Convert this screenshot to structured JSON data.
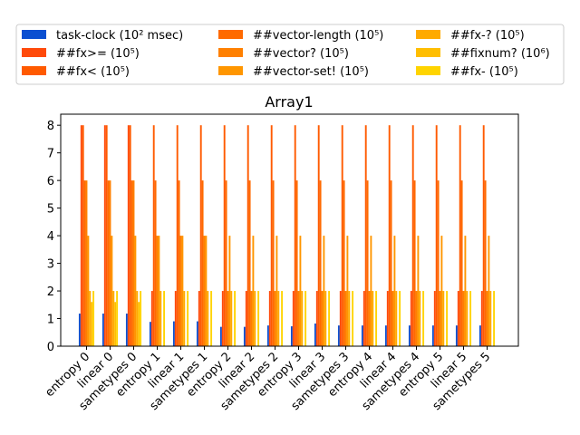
{
  "chart_data": {
    "type": "bar",
    "title": "Array1",
    "xlabel": "",
    "ylabel": "",
    "ylim": [
      0,
      8.4
    ],
    "yticks": [
      0,
      1,
      2,
      3,
      4,
      5,
      6,
      7,
      8
    ],
    "grid": false,
    "legend_position": "top (above plot, 3 columns)",
    "categories": [
      "entropy 0",
      "linear 0",
      "sametypes 0",
      "entropy 1",
      "linear 1",
      "sametypes 1",
      "entropy 2",
      "linear 2",
      "sametypes 2",
      "entropy 3",
      "linear 3",
      "sametypes 3",
      "entropy 4",
      "linear 4",
      "sametypes 4",
      "entropy 5",
      "linear 5",
      "sametypes 5"
    ],
    "series": [
      {
        "name": "task-clock (10² msec)",
        "color": "#0a4fd1",
        "values": [
          1.18,
          1.18,
          1.18,
          0.88,
          0.9,
          0.9,
          0.7,
          0.7,
          0.75,
          0.72,
          0.82,
          0.75,
          0.75,
          0.75,
          0.75,
          0.75,
          0.75,
          0.75
        ]
      },
      {
        "name": "##fx>= (10⁵)",
        "color": "#ff4a0a",
        "values": [
          8,
          8,
          8,
          2,
          2,
          2,
          2,
          2,
          2,
          2,
          2,
          2,
          2,
          2,
          2,
          2,
          2,
          2
        ]
      },
      {
        "name": "##fx< (10⁵)",
        "color": "#ff5a00",
        "values": [
          8,
          8,
          8,
          8,
          8,
          8,
          8,
          8,
          8,
          8,
          8,
          8,
          8,
          8,
          8,
          8,
          8,
          8
        ]
      },
      {
        "name": "##vector-length (10⁵)",
        "color": "#ff6a00",
        "values": [
          6,
          6,
          6,
          6,
          6,
          6,
          6,
          6,
          6,
          6,
          6,
          6,
          6,
          6,
          6,
          6,
          6,
          6
        ]
      },
      {
        "name": "##vector? (10⁵)",
        "color": "#ff8000",
        "values": [
          6,
          6,
          6,
          4,
          4,
          4,
          2,
          2,
          2,
          2,
          2,
          2,
          2,
          2,
          2,
          2,
          2,
          2
        ]
      },
      {
        "name": "##vector-set! (10⁵)",
        "color": "#ff9600",
        "values": [
          4,
          4,
          4,
          4,
          4,
          4,
          4,
          4,
          4,
          4,
          4,
          4,
          4,
          4,
          4,
          4,
          4,
          4
        ]
      },
      {
        "name": "##fx-? (10⁵)",
        "color": "#ffaa00",
        "values": [
          2,
          2,
          2,
          2,
          2,
          2,
          2,
          2,
          2,
          2,
          2,
          2,
          2,
          2,
          2,
          2,
          2,
          2
        ]
      },
      {
        "name": "##fixnum? (10⁶)",
        "color": "#ffbe00",
        "values": [
          1.6,
          1.6,
          1.6,
          0,
          0,
          0,
          0,
          0,
          0,
          0,
          0,
          0,
          0,
          0,
          0,
          0,
          0,
          0
        ]
      },
      {
        "name": "##fx- (10⁵)",
        "color": "#ffd400",
        "values": [
          2,
          2,
          2,
          2,
          2,
          2,
          2,
          2,
          2,
          2,
          2,
          2,
          2,
          2,
          2,
          2,
          2,
          2
        ]
      }
    ]
  }
}
